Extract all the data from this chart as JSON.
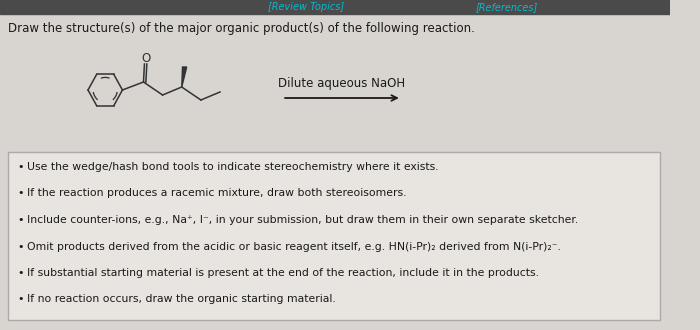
{
  "bg_color": "#d8d5d0",
  "top_bar_color": "#4a4a4a",
  "review_topics_text": "[Review Topics]",
  "references_text": "[References]",
  "header_text": "Draw the structure(s) of the major organic product(s) of the following reaction.",
  "reagent_text": "Dilute aqueous NaOH",
  "bullet_points": [
    "Use the wedge/hash bond tools to indicate stereochemistry where it exists.",
    "If the reaction produces a racemic mixture, draw both stereoisomers.",
    "Include counter-ions, e.g., Na⁺, I⁻, in your submission, but draw them in their own separate sketcher.",
    "Omit products derived from the acidic or basic reagent itself, e.g. HN(i-Pr)₂ derived from N(i-Pr)₂⁻.",
    "If substantial starting material is present at the end of the reaction, include it in the products.",
    "If no reaction occurs, draw the organic starting material."
  ],
  "box_facecolor": "#e8e5e0",
  "box_edge_color": "#aaaaaa",
  "text_color": "#1a1a1a",
  "cyan_color": "#00bcd4",
  "mol_line_color": "#333333"
}
